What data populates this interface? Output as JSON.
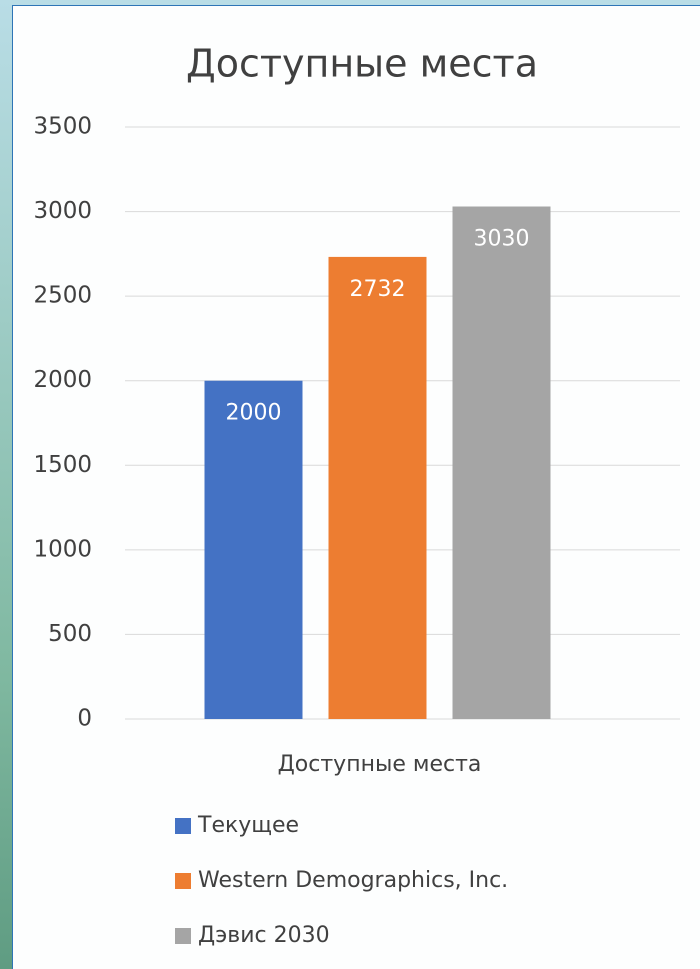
{
  "chart_data": {
    "type": "bar",
    "title": "Доступные места",
    "categories": [
      "Доступные места"
    ],
    "series": [
      {
        "name": "Текущее",
        "color": "#4472c4",
        "values": [
          2000
        ]
      },
      {
        "name": "Western Demographics, Inc.",
        "color": "#ed7d31",
        "values": [
          2732
        ]
      },
      {
        "name": "Дэвис 2030",
        "color": "#a5a5a5",
        "values": [
          3030
        ]
      }
    ],
    "ylim": [
      0,
      3500
    ],
    "yticks": [
      0,
      500,
      1000,
      1500,
      2000,
      2500,
      3000,
      3500
    ],
    "grid": true,
    "data_labels": true,
    "legend": "bottom"
  }
}
